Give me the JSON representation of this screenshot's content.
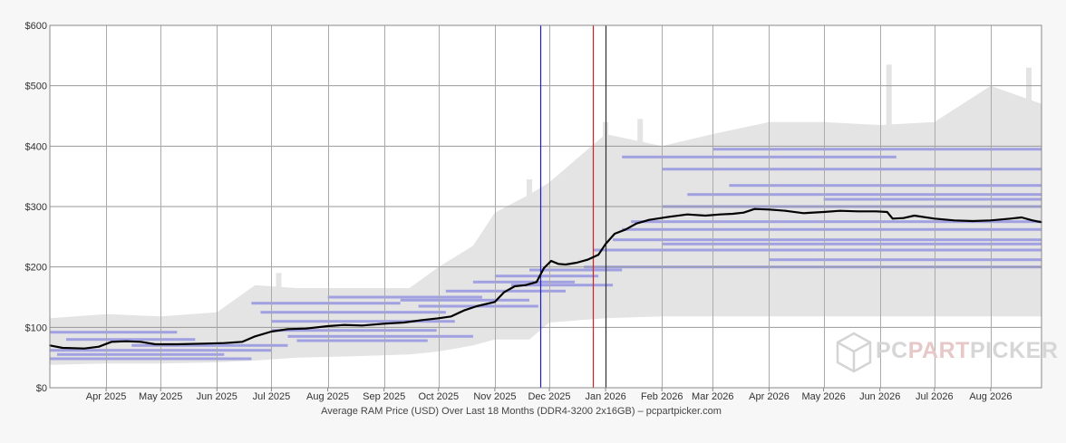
{
  "chart_data": {
    "type": "line",
    "title": "",
    "caption": "Average RAM Price (USD) Over Last 18 Months (DDR4-3200 2x16GB) – pcpartpicker.com",
    "xlabel": "",
    "ylabel": "",
    "xlim": [
      "2025-03-01",
      "2026-08-29"
    ],
    "ylim": [
      0,
      600
    ],
    "grid": true,
    "legend": "none",
    "y_ticks": [
      {
        "value": 0,
        "label": "$0"
      },
      {
        "value": 100,
        "label": "$100"
      },
      {
        "value": 200,
        "label": "$200"
      },
      {
        "value": 300,
        "label": "$300"
      },
      {
        "value": 400,
        "label": "$400"
      },
      {
        "value": 500,
        "label": "$500"
      },
      {
        "value": 600,
        "label": "$600"
      }
    ],
    "x_ticks": [
      {
        "date": "2025-04-01",
        "label": "Apr 2025"
      },
      {
        "date": "2025-05-01",
        "label": "May 2025"
      },
      {
        "date": "2025-06-01",
        "label": "Jun 2025"
      },
      {
        "date": "2025-07-01",
        "label": "Jul 2025"
      },
      {
        "date": "2025-08-01",
        "label": "Aug 2025"
      },
      {
        "date": "2025-09-01",
        "label": "Sep 2025"
      },
      {
        "date": "2025-10-01",
        "label": "Oct 2025"
      },
      {
        "date": "2025-11-01",
        "label": "Nov 2025"
      },
      {
        "date": "2025-12-01",
        "label": "Dec 2025"
      },
      {
        "date": "2026-01-01",
        "label": "Jan 2026"
      },
      {
        "date": "2026-02-01",
        "label": "Feb 2026"
      },
      {
        "date": "2026-03-01",
        "label": "Mar 2026"
      },
      {
        "date": "2026-04-01",
        "label": "Apr 2026"
      },
      {
        "date": "2026-05-01",
        "label": "May 2026"
      },
      {
        "date": "2026-06-01",
        "label": "Jun 2026"
      },
      {
        "date": "2026-07-01",
        "label": "Jul 2026"
      },
      {
        "date": "2026-08-01",
        "label": "Aug 2026"
      }
    ],
    "series": [
      {
        "type": "line",
        "color": "#000000",
        "points": [
          {
            "x": "2025-03-01",
            "y": 70
          },
          {
            "x": "2025-03-08",
            "y": 66
          },
          {
            "x": "2025-03-20",
            "y": 65
          },
          {
            "x": "2025-03-28",
            "y": 68
          },
          {
            "x": "2025-04-04",
            "y": 76
          },
          {
            "x": "2025-04-12",
            "y": 77
          },
          {
            "x": "2025-04-20",
            "y": 76
          },
          {
            "x": "2025-04-28",
            "y": 72
          },
          {
            "x": "2025-05-10",
            "y": 72
          },
          {
            "x": "2025-05-25",
            "y": 73
          },
          {
            "x": "2025-06-05",
            "y": 74
          },
          {
            "x": "2025-06-15",
            "y": 76
          },
          {
            "x": "2025-06-22",
            "y": 85
          },
          {
            "x": "2025-07-01",
            "y": 93
          },
          {
            "x": "2025-07-10",
            "y": 97
          },
          {
            "x": "2025-07-20",
            "y": 98
          },
          {
            "x": "2025-08-01",
            "y": 102
          },
          {
            "x": "2025-08-10",
            "y": 104
          },
          {
            "x": "2025-08-20",
            "y": 103
          },
          {
            "x": "2025-09-01",
            "y": 106
          },
          {
            "x": "2025-09-12",
            "y": 108
          },
          {
            "x": "2025-09-22",
            "y": 112
          },
          {
            "x": "2025-10-01",
            "y": 115
          },
          {
            "x": "2025-10-08",
            "y": 118
          },
          {
            "x": "2025-10-15",
            "y": 128
          },
          {
            "x": "2025-10-22",
            "y": 135
          },
          {
            "x": "2025-11-01",
            "y": 142
          },
          {
            "x": "2025-11-06",
            "y": 158
          },
          {
            "x": "2025-11-12",
            "y": 168
          },
          {
            "x": "2025-11-18",
            "y": 170
          },
          {
            "x": "2025-11-24",
            "y": 175
          },
          {
            "x": "2025-11-28",
            "y": 198
          },
          {
            "x": "2025-12-02",
            "y": 210
          },
          {
            "x": "2025-12-06",
            "y": 205
          },
          {
            "x": "2025-12-10",
            "y": 204
          },
          {
            "x": "2025-12-16",
            "y": 207
          },
          {
            "x": "2025-12-22",
            "y": 212
          },
          {
            "x": "2025-12-28",
            "y": 220
          },
          {
            "x": "2026-01-01",
            "y": 238
          },
          {
            "x": "2026-01-06",
            "y": 255
          },
          {
            "x": "2026-01-12",
            "y": 262
          },
          {
            "x": "2026-01-18",
            "y": 272
          },
          {
            "x": "2026-01-25",
            "y": 278
          },
          {
            "x": "2026-02-05",
            "y": 283
          },
          {
            "x": "2026-02-15",
            "y": 287
          },
          {
            "x": "2026-02-25",
            "y": 285
          },
          {
            "x": "2026-03-05",
            "y": 287
          },
          {
            "x": "2026-03-12",
            "y": 288
          },
          {
            "x": "2026-03-18",
            "y": 290
          },
          {
            "x": "2026-03-24",
            "y": 296
          },
          {
            "x": "2026-04-01",
            "y": 295
          },
          {
            "x": "2026-04-10",
            "y": 293
          },
          {
            "x": "2026-04-20",
            "y": 289
          },
          {
            "x": "2026-05-01",
            "y": 291
          },
          {
            "x": "2026-05-10",
            "y": 293
          },
          {
            "x": "2026-05-20",
            "y": 292
          },
          {
            "x": "2026-05-30",
            "y": 292
          },
          {
            "x": "2026-06-05",
            "y": 291
          },
          {
            "x": "2026-06-08",
            "y": 280
          },
          {
            "x": "2026-06-14",
            "y": 281
          },
          {
            "x": "2026-06-20",
            "y": 285
          },
          {
            "x": "2026-07-01",
            "y": 280
          },
          {
            "x": "2026-07-12",
            "y": 277
          },
          {
            "x": "2026-07-22",
            "y": 276
          },
          {
            "x": "2026-08-01",
            "y": 277
          },
          {
            "x": "2026-08-12",
            "y": 280
          },
          {
            "x": "2026-08-18",
            "y": 282
          },
          {
            "x": "2026-08-24",
            "y": 277
          },
          {
            "x": "2026-08-29",
            "y": 274
          }
        ]
      },
      {
        "type": "area",
        "color": "#e4e4e4",
        "points": [
          {
            "x": "2025-03-01",
            "upper": 115,
            "lower": 38
          },
          {
            "x": "2025-04-01",
            "upper": 122,
            "lower": 40
          },
          {
            "x": "2025-05-01",
            "upper": 118,
            "lower": 40
          },
          {
            "x": "2025-06-01",
            "upper": 125,
            "lower": 42
          },
          {
            "x": "2025-06-22",
            "upper": 170,
            "lower": 45
          },
          {
            "x": "2025-07-15",
            "upper": 165,
            "lower": 50
          },
          {
            "x": "2025-08-15",
            "upper": 165,
            "lower": 52
          },
          {
            "x": "2025-09-15",
            "upper": 165,
            "lower": 55
          },
          {
            "x": "2025-10-01",
            "upper": 200,
            "lower": 60
          },
          {
            "x": "2025-10-20",
            "upper": 235,
            "lower": 70
          },
          {
            "x": "2025-11-01",
            "upper": 290,
            "lower": 80
          },
          {
            "x": "2025-11-20",
            "upper": 320,
            "lower": 80
          },
          {
            "x": "2025-12-01",
            "upper": 340,
            "lower": 108
          },
          {
            "x": "2026-01-01",
            "upper": 420,
            "lower": 115
          },
          {
            "x": "2026-02-01",
            "upper": 400,
            "lower": 118
          },
          {
            "x": "2026-03-01",
            "upper": 420,
            "lower": 118
          },
          {
            "x": "2026-04-01",
            "upper": 440,
            "lower": 118
          },
          {
            "x": "2026-05-01",
            "upper": 440,
            "lower": 118
          },
          {
            "x": "2026-06-01",
            "upper": 435,
            "lower": 118
          },
          {
            "x": "2026-07-01",
            "upper": 440,
            "lower": 118
          },
          {
            "x": "2026-08-01",
            "upper": 500,
            "lower": 118
          },
          {
            "x": "2026-08-29",
            "upper": 470,
            "lower": 118
          }
        ]
      },
      {
        "type": "spikes",
        "color": "#e4e4e4",
        "points": [
          {
            "x": "2025-07-05",
            "y": 190
          },
          {
            "x": "2025-11-20",
            "y": 345
          },
          {
            "x": "2025-12-20",
            "y": 330
          },
          {
            "x": "2026-01-01",
            "y": 440
          },
          {
            "x": "2026-01-20",
            "y": 445
          },
          {
            "x": "2026-06-06",
            "y": 535
          },
          {
            "x": "2026-07-17",
            "y": 462
          },
          {
            "x": "2026-08-22",
            "y": 530
          }
        ]
      },
      {
        "type": "bands",
        "color": "#6a6ae0",
        "points": [
          {
            "start": "2025-03-01",
            "end": "2025-05-10",
            "y": 92
          },
          {
            "start": "2025-03-01",
            "end": "2025-07-01",
            "y": 62
          },
          {
            "start": "2025-03-05",
            "end": "2025-06-05",
            "y": 55
          },
          {
            "start": "2025-03-01",
            "end": "2025-06-20",
            "y": 48
          },
          {
            "start": "2025-03-10",
            "end": "2025-05-20",
            "y": 80
          },
          {
            "start": "2025-04-15",
            "end": "2025-07-10",
            "y": 70
          },
          {
            "start": "2025-06-20",
            "end": "2025-09-10",
            "y": 140
          },
          {
            "start": "2025-06-25",
            "end": "2025-10-05",
            "y": 125
          },
          {
            "start": "2025-07-01",
            "end": "2025-10-10",
            "y": 110
          },
          {
            "start": "2025-07-01",
            "end": "2025-09-30",
            "y": 95
          },
          {
            "start": "2025-07-10",
            "end": "2025-10-20",
            "y": 85
          },
          {
            "start": "2025-07-15",
            "end": "2025-09-25",
            "y": 78
          },
          {
            "start": "2025-08-01",
            "end": "2025-10-25",
            "y": 150
          },
          {
            "start": "2025-09-10",
            "end": "2025-11-20",
            "y": 145
          },
          {
            "start": "2025-09-20",
            "end": "2025-11-25",
            "y": 135
          },
          {
            "start": "2025-10-05",
            "end": "2025-12-10",
            "y": 160
          },
          {
            "start": "2025-10-20",
            "end": "2025-12-15",
            "y": 175
          },
          {
            "start": "2025-11-01",
            "end": "2025-12-28",
            "y": 185
          },
          {
            "start": "2025-11-10",
            "end": "2026-01-05",
            "y": 170
          },
          {
            "start": "2025-11-20",
            "end": "2026-01-10",
            "y": 195
          },
          {
            "start": "2025-12-20",
            "end": "2026-08-29",
            "y": 200
          },
          {
            "start": "2025-12-25",
            "end": "2026-08-29",
            "y": 228
          },
          {
            "start": "2026-01-05",
            "end": "2026-08-29",
            "y": 245
          },
          {
            "start": "2026-01-10",
            "end": "2026-08-29",
            "y": 262
          },
          {
            "start": "2026-01-15",
            "end": "2026-08-29",
            "y": 275
          },
          {
            "start": "2026-02-01",
            "end": "2026-08-29",
            "y": 300
          },
          {
            "start": "2026-02-15",
            "end": "2026-08-29",
            "y": 320
          },
          {
            "start": "2026-03-10",
            "end": "2026-08-29",
            "y": 335
          },
          {
            "start": "2026-02-01",
            "end": "2026-08-29",
            "y": 362
          },
          {
            "start": "2026-03-01",
            "end": "2026-08-29",
            "y": 395
          },
          {
            "start": "2026-01-10",
            "end": "2026-06-10",
            "y": 382
          },
          {
            "start": "2026-05-01",
            "end": "2026-08-29",
            "y": 312
          },
          {
            "start": "2026-04-01",
            "end": "2026-08-29",
            "y": 212
          },
          {
            "start": "2026-02-01",
            "end": "2026-08-29",
            "y": 238
          }
        ]
      },
      {
        "type": "vertical-markers",
        "color": "#1e1ec8",
        "points": [
          {
            "x": "2025-11-26",
            "color": "#1e1ec8"
          },
          {
            "x": "2025-12-25",
            "color": "#d02020"
          },
          {
            "x": "2026-01-01",
            "color": "#303030"
          }
        ]
      }
    ]
  },
  "watermark": {
    "text_pc": "PC",
    "text_part": "PART",
    "text_picker": "PICKER"
  }
}
